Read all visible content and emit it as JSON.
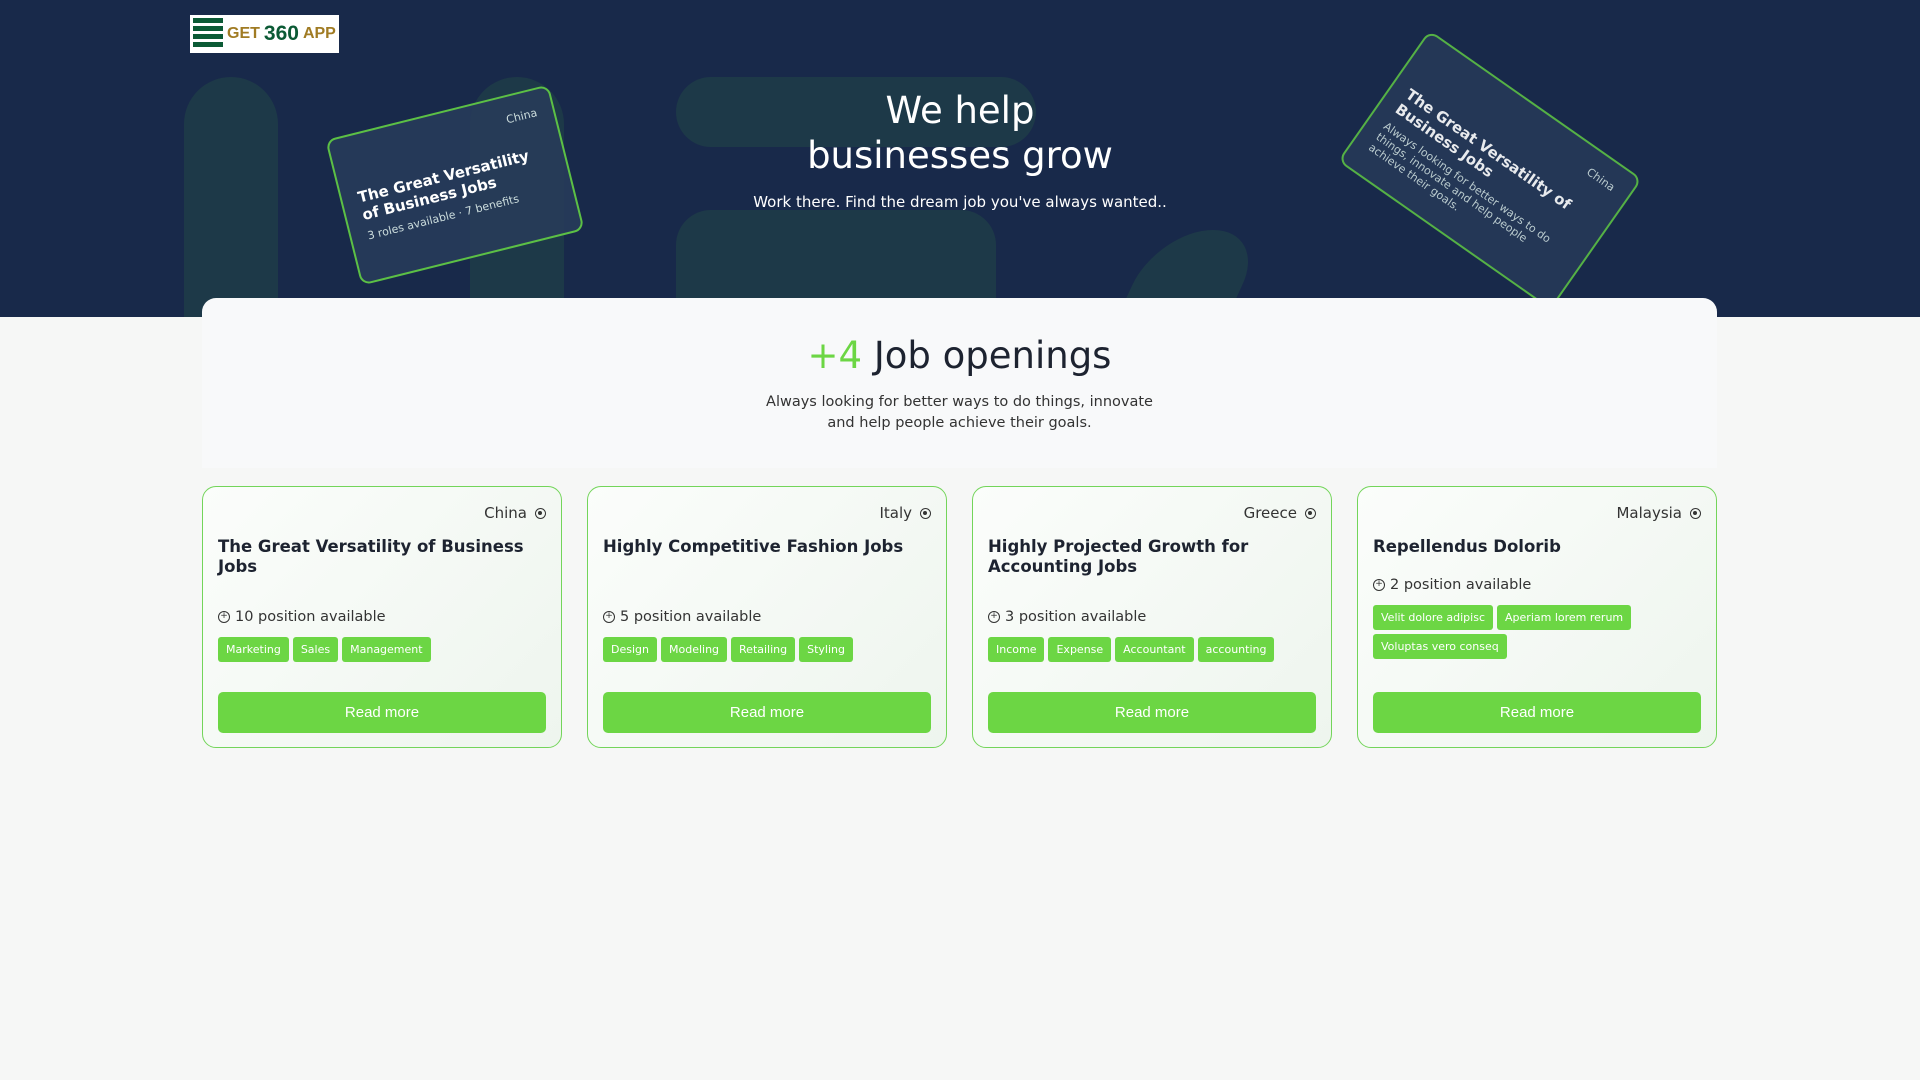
{
  "brand": {
    "logo_text_1": "GET",
    "logo_text_2": "360",
    "logo_text_3": "APP"
  },
  "hero": {
    "title_line1": "We help",
    "title_line2": "businesses grow",
    "subtitle": "Work there. Find the dream job you've always wanted..",
    "preview_card": {
      "location": "China",
      "title": "The Great Versatility of Business Jobs",
      "roles": "3 roles available",
      "benefits": "7 benefits",
      "description": "Always looking for better ways to do things, innovate and help people achieve their goals.",
      "tags": [
        "Marketing",
        "Sales",
        "Management"
      ]
    }
  },
  "openings": {
    "count": "+4",
    "title": "Job openings",
    "description_line1": "Always looking for better ways to do things, innovate",
    "description_line2": "and help people achieve their goals."
  },
  "colors": {
    "accent": "#6cd644",
    "hero_bg": "#18294a"
  },
  "jobs": [
    {
      "location": "China",
      "title": "The Great Versatility of Business Jobs",
      "positions": "10 position available",
      "tags": [
        "Marketing",
        "Sales",
        "Management"
      ],
      "button": "Read more"
    },
    {
      "location": "Italy",
      "title": "Highly Competitive Fashion Jobs",
      "positions": "5 position available",
      "tags": [
        "Design",
        "Modeling",
        "Retailing",
        "Styling"
      ],
      "button": "Read more"
    },
    {
      "location": "Greece",
      "title": "Highly Projected Growth for Accounting Jobs",
      "positions": "3 position available",
      "tags": [
        "Income",
        "Expense",
        "Accountant",
        "accounting"
      ],
      "button": "Read more"
    },
    {
      "location": "Malaysia",
      "title": "Repellendus Dolorib",
      "positions": "2 position available",
      "tags": [
        "Velit dolore adipisc",
        "Aperiam lorem rerum",
        "Voluptas vero conseq"
      ],
      "button": "Read more"
    }
  ]
}
